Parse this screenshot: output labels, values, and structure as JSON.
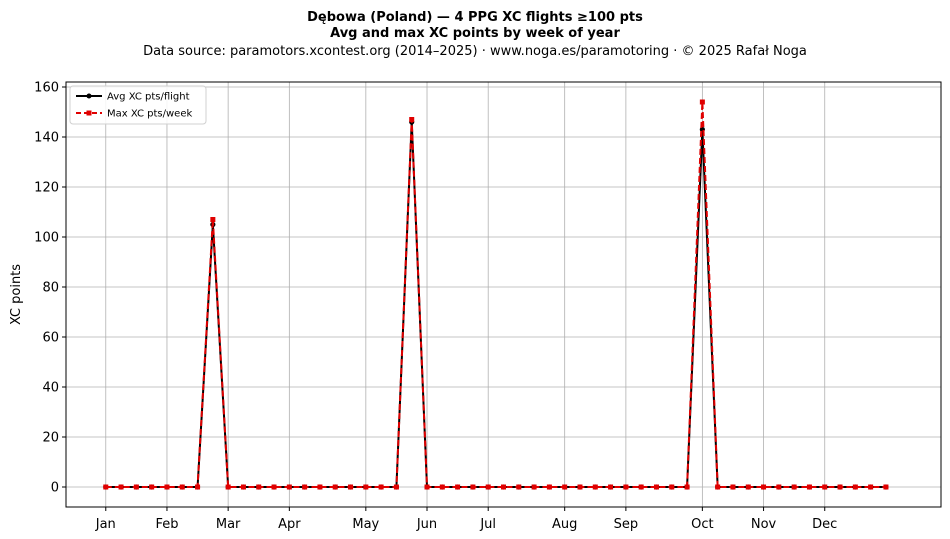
{
  "chart_data": {
    "type": "line",
    "title": "Dębowa (Poland)  —  4 PPG XC flights ≥100 pts",
    "title_line2": "Avg and max XC points by week of year",
    "subtitle": "Data source: paramotors.xcontest.org (2014–2025)  ·  www.noga.es/paramotoring  ·  © 2025 Rafał Noga",
    "xlabel": "",
    "ylabel": "XC points",
    "x_ticks": [
      {
        "label": "Jan",
        "week": 1
      },
      {
        "label": "Feb",
        "week": 5
      },
      {
        "label": "Mar",
        "week": 9
      },
      {
        "label": "Apr",
        "week": 13
      },
      {
        "label": "May",
        "week": 18
      },
      {
        "label": "Jun",
        "week": 22
      },
      {
        "label": "Jul",
        "week": 26
      },
      {
        "label": "Aug",
        "week": 31
      },
      {
        "label": "Sep",
        "week": 35
      },
      {
        "label": "Oct",
        "week": 40
      },
      {
        "label": "Nov",
        "week": 44
      },
      {
        "label": "Dec",
        "week": 48
      }
    ],
    "xlim": [
      -1.6,
      55.6
    ],
    "ylim": [
      -8,
      162
    ],
    "y_ticks": [
      0,
      20,
      40,
      60,
      80,
      100,
      120,
      140,
      160
    ],
    "grid": true,
    "legend": "top-left",
    "x": [
      1,
      2,
      3,
      4,
      5,
      6,
      7,
      8,
      9,
      10,
      11,
      12,
      13,
      14,
      15,
      16,
      17,
      18,
      19,
      20,
      21,
      22,
      23,
      24,
      25,
      26,
      27,
      28,
      29,
      30,
      31,
      32,
      33,
      34,
      35,
      36,
      37,
      38,
      39,
      40,
      41,
      42,
      43,
      44,
      45,
      46,
      47,
      48,
      49,
      50,
      51,
      52
    ],
    "series": [
      {
        "name": "Avg XC pts/flight",
        "color": "#000000",
        "line": "solid",
        "marker": "circle",
        "values": [
          0,
          0,
          0,
          0,
          0,
          0,
          0,
          105,
          0,
          0,
          0,
          0,
          0,
          0,
          0,
          0,
          0,
          0,
          0,
          0,
          146,
          0,
          0,
          0,
          0,
          0,
          0,
          0,
          0,
          0,
          0,
          0,
          0,
          0,
          0,
          0,
          0,
          0,
          0,
          143,
          0,
          0,
          0,
          0,
          0,
          0,
          0,
          0,
          0,
          0,
          0,
          0
        ]
      },
      {
        "name": "Max XC pts/week",
        "color": "#e00000",
        "line": "dashed",
        "marker": "square",
        "values": [
          0,
          0,
          0,
          0,
          0,
          0,
          0,
          107,
          0,
          0,
          0,
          0,
          0,
          0,
          0,
          0,
          0,
          0,
          0,
          0,
          147,
          0,
          0,
          0,
          0,
          0,
          0,
          0,
          0,
          0,
          0,
          0,
          0,
          0,
          0,
          0,
          0,
          0,
          0,
          154,
          0,
          0,
          0,
          0,
          0,
          0,
          0,
          0,
          0,
          0,
          0,
          0
        ]
      }
    ]
  }
}
